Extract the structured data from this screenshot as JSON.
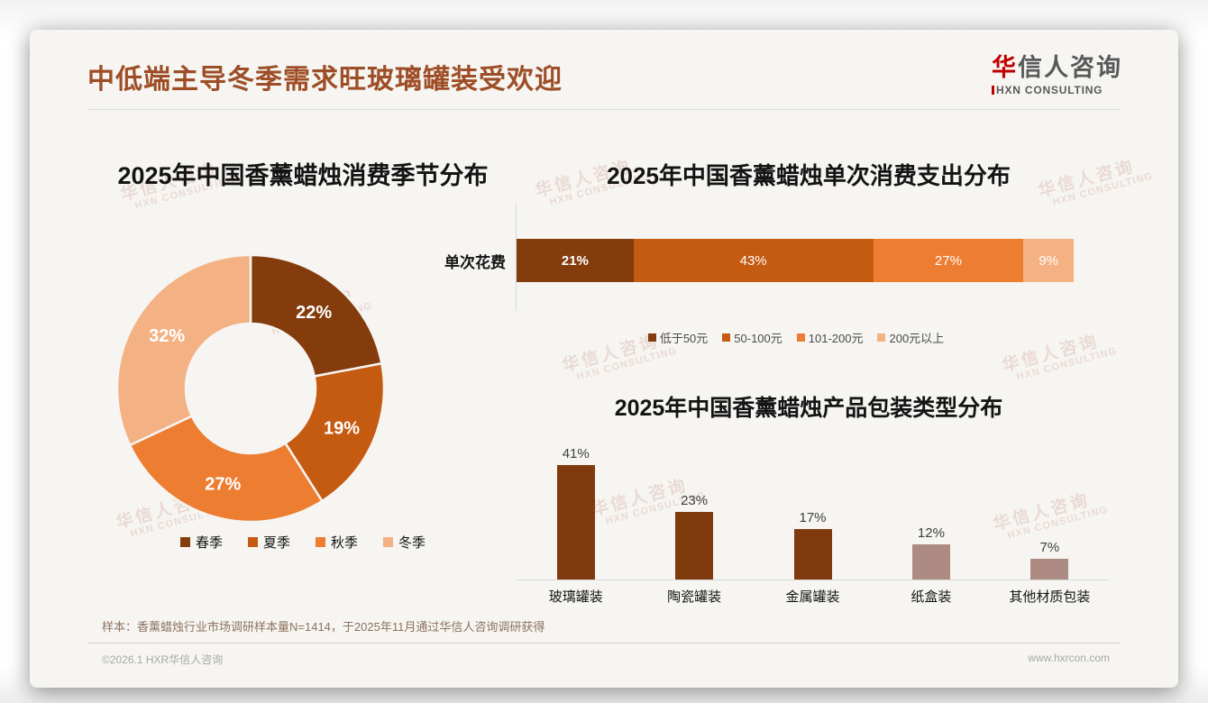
{
  "slide": {
    "title": "中低端主导冬季需求旺玻璃罐装受欢迎",
    "logo": {
      "zh_accent": "华",
      "zh": "信人咨询",
      "en": "HXN CONSULTING"
    },
    "watermark": {
      "zh": "华信人咨询",
      "en": "HXN CONSULTING"
    },
    "footnote": "样本：香薰蜡烛行业市场调研样本量N=1414，于2025年11月通过华信人咨询调研获得",
    "footer": {
      "copyright": "©2026.1 HXR华信人咨询",
      "website": "www.hxrcon.com"
    }
  },
  "colors": {
    "title": "#9E4E26",
    "background": "#F6F5F2",
    "palette": [
      "#843C0C",
      "#C55A11",
      "#ED7D31",
      "#F4B183"
    ],
    "bar_brown": "#7F3B0D",
    "bar_taupe": "#AD8B82"
  },
  "chart_data": [
    {
      "type": "pie",
      "subtype": "donut",
      "title": "2025年中国香薰蜡烛消费季节分布",
      "categories": [
        "春季",
        "夏季",
        "秋季",
        "冬季"
      ],
      "values": [
        22,
        19,
        27,
        32
      ],
      "unit": "%",
      "colors": [
        "#843C0C",
        "#C55A11",
        "#ED7D31",
        "#F4B183"
      ],
      "start_angle_deg": 0,
      "direction": "clockwise",
      "legend_position": "bottom"
    },
    {
      "type": "bar",
      "subtype": "horizontal-stacked",
      "title": "2025年中国香薰蜡烛单次消费支出分布",
      "categories": [
        "单次花费"
      ],
      "series": [
        {
          "name": "低于50元",
          "values": [
            21
          ]
        },
        {
          "name": "50-100元",
          "values": [
            43
          ]
        },
        {
          "name": "101-200元",
          "values": [
            27
          ]
        },
        {
          "name": "200元以上",
          "values": [
            9
          ]
        }
      ],
      "unit": "%",
      "colors": [
        "#843C0C",
        "#C55A11",
        "#ED7D31",
        "#F4B183"
      ],
      "xlim": [
        0,
        100
      ],
      "legend_position": "bottom",
      "grid": false
    },
    {
      "type": "bar",
      "subtype": "vertical",
      "title": "2025年中国香薰蜡烛产品包装类型分布",
      "categories": [
        "玻璃罐装",
        "陶瓷罐装",
        "金属罐装",
        "纸盒装",
        "其他材质包装"
      ],
      "values": [
        41,
        23,
        17,
        12,
        7
      ],
      "unit": "%",
      "colors": [
        "#7F3B0D",
        "#7F3B0D",
        "#7F3B0D",
        "#AD8B82",
        "#AD8B82"
      ],
      "ylim": [
        0,
        45
      ],
      "grid": false
    }
  ]
}
